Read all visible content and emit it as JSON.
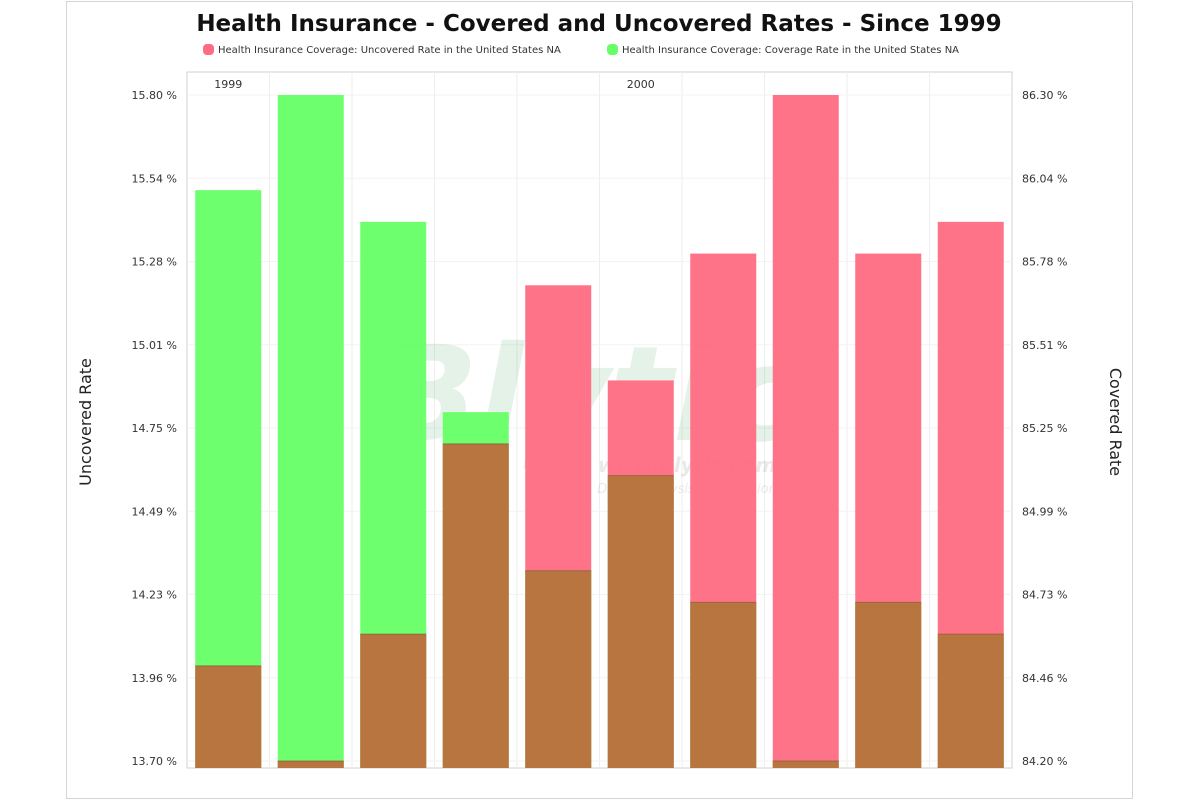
{
  "chart_data": {
    "type": "bar",
    "title": "Health Insurance - Covered and Uncovered Rates - Since 1999",
    "left_axis_title": "Uncovered Rate",
    "right_axis_title": "Covered Rate",
    "left_ticks": [
      "13.70 %",
      "13.96 %",
      "14.23 %",
      "14.49 %",
      "14.75 %",
      "15.01 %",
      "15.28 %",
      "15.54 %",
      "15.80 %"
    ],
    "right_ticks": [
      "84.20 %",
      "84.46 %",
      "84.73 %",
      "84.99 %",
      "85.25 %",
      "85.51 %",
      "85.78 %",
      "86.04 %",
      "86.30 %"
    ],
    "left_range": [
      13.7,
      15.8
    ],
    "right_range": [
      84.2,
      86.3
    ],
    "x_labels": [
      {
        "text": "1999",
        "position": 0
      },
      {
        "text": "2000",
        "position": 5
      }
    ],
    "grid": true,
    "legend_position": "top-center",
    "series": [
      {
        "name": "Health Insurance Coverage: Uncovered Rate in the United States NA",
        "axis": "left",
        "color": "#ff6b82",
        "values": [
          14.0,
          13.7,
          14.1,
          14.7,
          15.2,
          14.9,
          15.3,
          15.8,
          15.3,
          15.4
        ]
      },
      {
        "name": "Health Insurance Coverage: Coverage Rate in the United States NA",
        "axis": "right",
        "color": "#66ff66",
        "values": [
          86.0,
          86.3,
          85.9,
          85.3,
          84.8,
          85.1,
          84.7,
          84.2,
          84.7,
          84.6
        ]
      }
    ],
    "overlap_color": "#b87540",
    "watermark": {
      "brand": "Blytic",
      "url": "www.blytic.com",
      "tagline": "Data - Analysis - Discussion"
    }
  }
}
